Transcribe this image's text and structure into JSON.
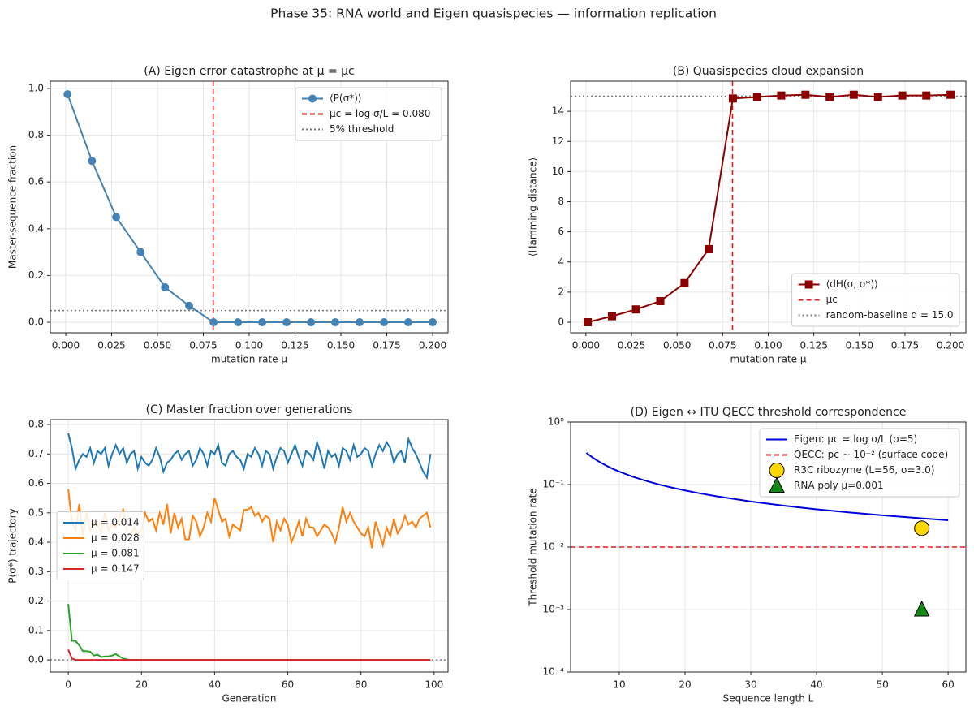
{
  "title": "Phase 35: RNA world and Eigen quasispecies — information replication",
  "chart_data": [
    {
      "type": "line",
      "title": "(A) Eigen error catastrophe at μ = μc",
      "xlabel": "mutation rate μ",
      "ylabel": "Master-sequence fraction",
      "x": [
        0.001,
        0.0143,
        0.0275,
        0.0408,
        0.0541,
        0.0673,
        0.0806,
        0.0939,
        0.1071,
        0.1204,
        0.1337,
        0.1469,
        0.1602,
        0.1735,
        0.1867,
        0.2
      ],
      "series": [
        {
          "name": "⟨P(σ*)⟩",
          "color": "#4682b4",
          "marker": "o",
          "values": [
            0.975,
            0.69,
            0.45,
            0.3,
            0.15,
            0.07,
            0.0,
            0.0,
            0.0,
            0.0,
            0.0,
            0.0,
            0.0,
            0.0,
            0.0,
            0.0
          ]
        }
      ],
      "vlines": [
        {
          "name": "μc = log σ/L = 0.080",
          "value": 0.0804,
          "color": "#e31a1c",
          "style": "dashed"
        }
      ],
      "hlines": [
        {
          "name": "5% threshold",
          "value": 0.05,
          "color": "#777777",
          "style": "dotted"
        }
      ],
      "xlim": [
        -0.0084,
        0.2084
      ],
      "ylim": [
        -0.045,
        1.031
      ],
      "xticks": [
        {
          "value": 0,
          "label": "0.000"
        },
        {
          "value": 0.025,
          "label": "0.025"
        },
        {
          "value": 0.05,
          "label": "0.050"
        },
        {
          "value": 0.075,
          "label": "0.075"
        },
        {
          "value": 0.1,
          "label": "0.100"
        },
        {
          "value": 0.125,
          "label": "0.125"
        },
        {
          "value": 0.15,
          "label": "0.150"
        },
        {
          "value": 0.175,
          "label": "0.175"
        },
        {
          "value": 0.2,
          "label": "0.200"
        }
      ],
      "yticks": [
        {
          "value": 0,
          "label": "0.0"
        },
        {
          "value": 0.2,
          "label": "0.2"
        },
        {
          "value": 0.4,
          "label": "0.4"
        },
        {
          "value": 0.6,
          "label": "0.6"
        },
        {
          "value": 0.8,
          "label": "0.8"
        },
        {
          "value": 1,
          "label": "1.0"
        }
      ],
      "grid": true,
      "legend": "upper right"
    },
    {
      "type": "line",
      "title": "(B) Quasispecies cloud expansion",
      "xlabel": "mutation rate μ",
      "ylabel": "⟨Hamming distance⟩",
      "x": [
        0.001,
        0.0143,
        0.0275,
        0.0408,
        0.0541,
        0.0673,
        0.0806,
        0.0939,
        0.1071,
        0.1204,
        0.1337,
        0.1469,
        0.1602,
        0.1735,
        0.1867,
        0.2
      ],
      "series": [
        {
          "name": "⟨dH(σ, σ*)⟩",
          "color": "#8b0000",
          "marker": "s",
          "values": [
            0.0,
            0.4,
            0.85,
            1.4,
            2.6,
            4.85,
            14.85,
            14.95,
            15.05,
            15.1,
            14.95,
            15.1,
            14.95,
            15.05,
            15.05,
            15.1
          ]
        }
      ],
      "vlines": [
        {
          "name": "μc",
          "value": 0.0804,
          "color": "#e31a1c",
          "style": "dashed"
        }
      ],
      "hlines": [
        {
          "name": "random-baseline d = 15.0",
          "value": 15,
          "color": "#777777",
          "style": "dotted"
        }
      ],
      "xlim": [
        -0.0084,
        0.2084
      ],
      "ylim": [
        -0.7,
        16
      ],
      "xticks": [
        {
          "value": 0,
          "label": "0.000"
        },
        {
          "value": 0.025,
          "label": "0.025"
        },
        {
          "value": 0.05,
          "label": "0.050"
        },
        {
          "value": 0.075,
          "label": "0.075"
        },
        {
          "value": 0.1,
          "label": "0.100"
        },
        {
          "value": 0.125,
          "label": "0.125"
        },
        {
          "value": 0.15,
          "label": "0.150"
        },
        {
          "value": 0.175,
          "label": "0.175"
        },
        {
          "value": 0.2,
          "label": "0.200"
        }
      ],
      "yticks": [
        0,
        2,
        4,
        6,
        8,
        10,
        12,
        14
      ],
      "grid": true,
      "legend": "lower right"
    },
    {
      "type": "line",
      "title": "(C) Master fraction over generations",
      "xlabel": "Generation",
      "ylabel": "P(σ*) trajectory",
      "x": [
        0,
        1,
        2,
        3,
        4,
        5,
        6,
        7,
        8,
        9,
        10,
        11,
        12,
        13,
        14,
        15,
        16,
        17,
        18,
        19,
        20,
        21,
        22,
        23,
        24,
        25,
        26,
        27,
        28,
        29,
        30,
        31,
        32,
        33,
        34,
        35,
        36,
        37,
        38,
        39,
        40,
        41,
        42,
        43,
        44,
        45,
        46,
        47,
        48,
        49,
        50,
        51,
        52,
        53,
        54,
        55,
        56,
        57,
        58,
        59,
        60,
        61,
        62,
        63,
        64,
        65,
        66,
        67,
        68,
        69,
        70,
        71,
        72,
        73,
        74,
        75,
        76,
        77,
        78,
        79,
        80,
        81,
        82,
        83,
        84,
        85,
        86,
        87,
        88,
        89,
        90,
        91,
        92,
        93,
        94,
        95,
        96,
        97,
        98,
        99
      ],
      "series": [
        {
          "name": "μ = 0.014",
          "color": "#1f77b4",
          "values": [
            0.77,
            0.72,
            0.65,
            0.68,
            0.7,
            0.69,
            0.72,
            0.67,
            0.71,
            0.7,
            0.72,
            0.66,
            0.7,
            0.73,
            0.7,
            0.72,
            0.67,
            0.7,
            0.71,
            0.65,
            0.69,
            0.67,
            0.66,
            0.68,
            0.72,
            0.69,
            0.64,
            0.67,
            0.68,
            0.7,
            0.71,
            0.68,
            0.7,
            0.71,
            0.66,
            0.68,
            0.72,
            0.7,
            0.66,
            0.71,
            0.7,
            0.73,
            0.67,
            0.66,
            0.7,
            0.71,
            0.69,
            0.68,
            0.65,
            0.7,
            0.69,
            0.72,
            0.7,
            0.66,
            0.71,
            0.7,
            0.65,
            0.69,
            0.72,
            0.71,
            0.67,
            0.7,
            0.73,
            0.69,
            0.66,
            0.71,
            0.7,
            0.68,
            0.74,
            0.7,
            0.65,
            0.71,
            0.69,
            0.7,
            0.66,
            0.72,
            0.71,
            0.68,
            0.73,
            0.69,
            0.7,
            0.72,
            0.71,
            0.66,
            0.7,
            0.73,
            0.71,
            0.74,
            0.72,
            0.67,
            0.7,
            0.71,
            0.67,
            0.75,
            0.72,
            0.7,
            0.67,
            0.64,
            0.62,
            0.7
          ]
        },
        {
          "name": "μ = 0.028",
          "color": "#ff7f0e",
          "values": [
            0.58,
            0.47,
            0.44,
            0.53,
            0.42,
            0.5,
            0.44,
            0.47,
            0.46,
            0.43,
            0.5,
            0.44,
            0.46,
            0.45,
            0.49,
            0.51,
            0.44,
            0.42,
            0.45,
            0.43,
            0.44,
            0.5,
            0.47,
            0.48,
            0.44,
            0.5,
            0.46,
            0.53,
            0.43,
            0.5,
            0.45,
            0.48,
            0.41,
            0.41,
            0.49,
            0.47,
            0.42,
            0.45,
            0.5,
            0.47,
            0.55,
            0.51,
            0.47,
            0.48,
            0.42,
            0.46,
            0.45,
            0.44,
            0.51,
            0.51,
            0.52,
            0.49,
            0.5,
            0.47,
            0.49,
            0.48,
            0.4,
            0.47,
            0.44,
            0.48,
            0.46,
            0.4,
            0.43,
            0.47,
            0.42,
            0.48,
            0.45,
            0.45,
            0.42,
            0.44,
            0.46,
            0.45,
            0.43,
            0.4,
            0.45,
            0.52,
            0.47,
            0.5,
            0.47,
            0.45,
            0.43,
            0.42,
            0.45,
            0.38,
            0.47,
            0.43,
            0.39,
            0.45,
            0.42,
            0.48,
            0.43,
            0.45,
            0.49,
            0.46,
            0.47,
            0.45,
            0.48,
            0.49,
            0.5,
            0.45
          ]
        },
        {
          "name": "μ = 0.081",
          "color": "#2ca02c",
          "values": [
            0.19,
            0.065,
            0.065,
            0.05,
            0.03,
            0.03,
            0.028,
            0.015,
            0.018,
            0.01,
            0.012,
            0.012,
            0.015,
            0.02,
            0.012,
            0.005,
            0.002,
            0,
            0,
            0,
            0,
            0,
            0,
            0,
            0,
            0,
            0,
            0,
            0,
            0,
            0,
            0,
            0,
            0,
            0,
            0,
            0,
            0,
            0,
            0,
            0,
            0,
            0,
            0,
            0,
            0,
            0,
            0,
            0,
            0,
            0,
            0,
            0,
            0,
            0,
            0,
            0,
            0,
            0,
            0,
            0,
            0,
            0,
            0,
            0,
            0,
            0,
            0,
            0,
            0,
            0,
            0,
            0,
            0,
            0,
            0,
            0,
            0,
            0,
            0,
            0,
            0,
            0,
            0,
            0,
            0,
            0,
            0,
            0,
            0,
            0,
            0,
            0,
            0,
            0,
            0,
            0,
            0,
            0,
            0
          ]
        },
        {
          "name": "μ = 0.147",
          "color": "#d62728",
          "values": [
            0.035,
            0.005,
            0,
            0,
            0,
            0,
            0,
            0,
            0,
            0,
            0,
            0,
            0,
            0,
            0,
            0,
            0,
            0,
            0,
            0,
            0,
            0,
            0,
            0,
            0,
            0,
            0,
            0,
            0,
            0,
            0,
            0,
            0,
            0,
            0,
            0,
            0,
            0,
            0,
            0,
            0,
            0,
            0,
            0,
            0,
            0,
            0,
            0,
            0,
            0,
            0,
            0,
            0,
            0,
            0,
            0,
            0,
            0,
            0,
            0,
            0,
            0,
            0,
            0,
            0,
            0,
            0,
            0,
            0,
            0,
            0,
            0,
            0,
            0,
            0,
            0,
            0,
            0,
            0,
            0,
            0,
            0,
            0,
            0,
            0,
            0,
            0,
            0,
            0,
            0,
            0,
            0,
            0,
            0,
            0,
            0,
            0,
            0,
            0,
            0
          ]
        }
      ],
      "hlines": [
        {
          "value": 0,
          "color": "#777777",
          "style": "dotted"
        }
      ],
      "xlim": [
        -4.9,
        103.8
      ],
      "ylim": [
        -0.041,
        0.8166
      ],
      "xticks": [
        0,
        20,
        40,
        60,
        80,
        100
      ],
      "yticks": [
        {
          "value": 0,
          "label": "0.0"
        },
        {
          "value": 0.1,
          "label": "0.1"
        },
        {
          "value": 0.2,
          "label": "0.2"
        },
        {
          "value": 0.3,
          "label": "0.3"
        },
        {
          "value": 0.4,
          "label": "0.4"
        },
        {
          "value": 0.5,
          "label": "0.5"
        },
        {
          "value": 0.6,
          "label": "0.6"
        },
        {
          "value": 0.7,
          "label": "0.7"
        },
        {
          "value": 0.8,
          "label": "0.8"
        }
      ],
      "grid": true,
      "legend": "center left"
    },
    {
      "type": "line",
      "title": "(D) Eigen ↔ ITU QECC threshold correspondence",
      "xlabel": "Sequence length L",
      "ylabel": "Threshold mutation rate",
      "series": [
        {
          "name": "Eigen: μc = log σ/L (σ=5)",
          "color": "#0000dd",
          "x": [
            5,
            6,
            7,
            8,
            9,
            10,
            12,
            14,
            16,
            18,
            20,
            22,
            25,
            30,
            35,
            40,
            45,
            50,
            55,
            60
          ],
          "values": [
            0.3219,
            0.2682,
            0.2299,
            0.2012,
            0.1788,
            0.1609,
            0.1341,
            0.115,
            0.1006,
            0.0894,
            0.0805,
            0.0732,
            0.0644,
            0.0536,
            0.046,
            0.0402,
            0.0358,
            0.0322,
            0.0293,
            0.0268
          ]
        },
        {
          "name": "R3C ribozyme (L=56, σ=3.0)",
          "color": "#ffd700",
          "marker": "o",
          "linestyle": "none",
          "x": [
            56
          ],
          "values": [
            0.02
          ]
        },
        {
          "name": "RNA poly μ=0.001",
          "color": "#138a13",
          "marker": "^",
          "linestyle": "none",
          "x": [
            56
          ],
          "values": [
            0.001
          ]
        }
      ],
      "hlines": [
        {
          "name": "QECC: pc ∼ 10⁻² (surface code)",
          "value": 0.01,
          "color": "#e31a1c",
          "style": "dashed"
        }
      ],
      "log_y": true,
      "xlim": [
        2.6,
        62.7
      ],
      "ylim": [
        0.0001,
        1
      ],
      "xticks": [
        10,
        20,
        30,
        40,
        50,
        60
      ],
      "yticks": [
        {
          "value": 0.0001,
          "label": "10⁻⁴"
        },
        {
          "value": 0.001,
          "label": "10⁻³"
        },
        {
          "value": 0.01,
          "label": "10⁻²"
        },
        {
          "value": 0.1,
          "label": "10⁻¹"
        },
        {
          "value": 1,
          "label": "10⁰"
        }
      ],
      "grid": true,
      "legend": "upper right"
    }
  ]
}
